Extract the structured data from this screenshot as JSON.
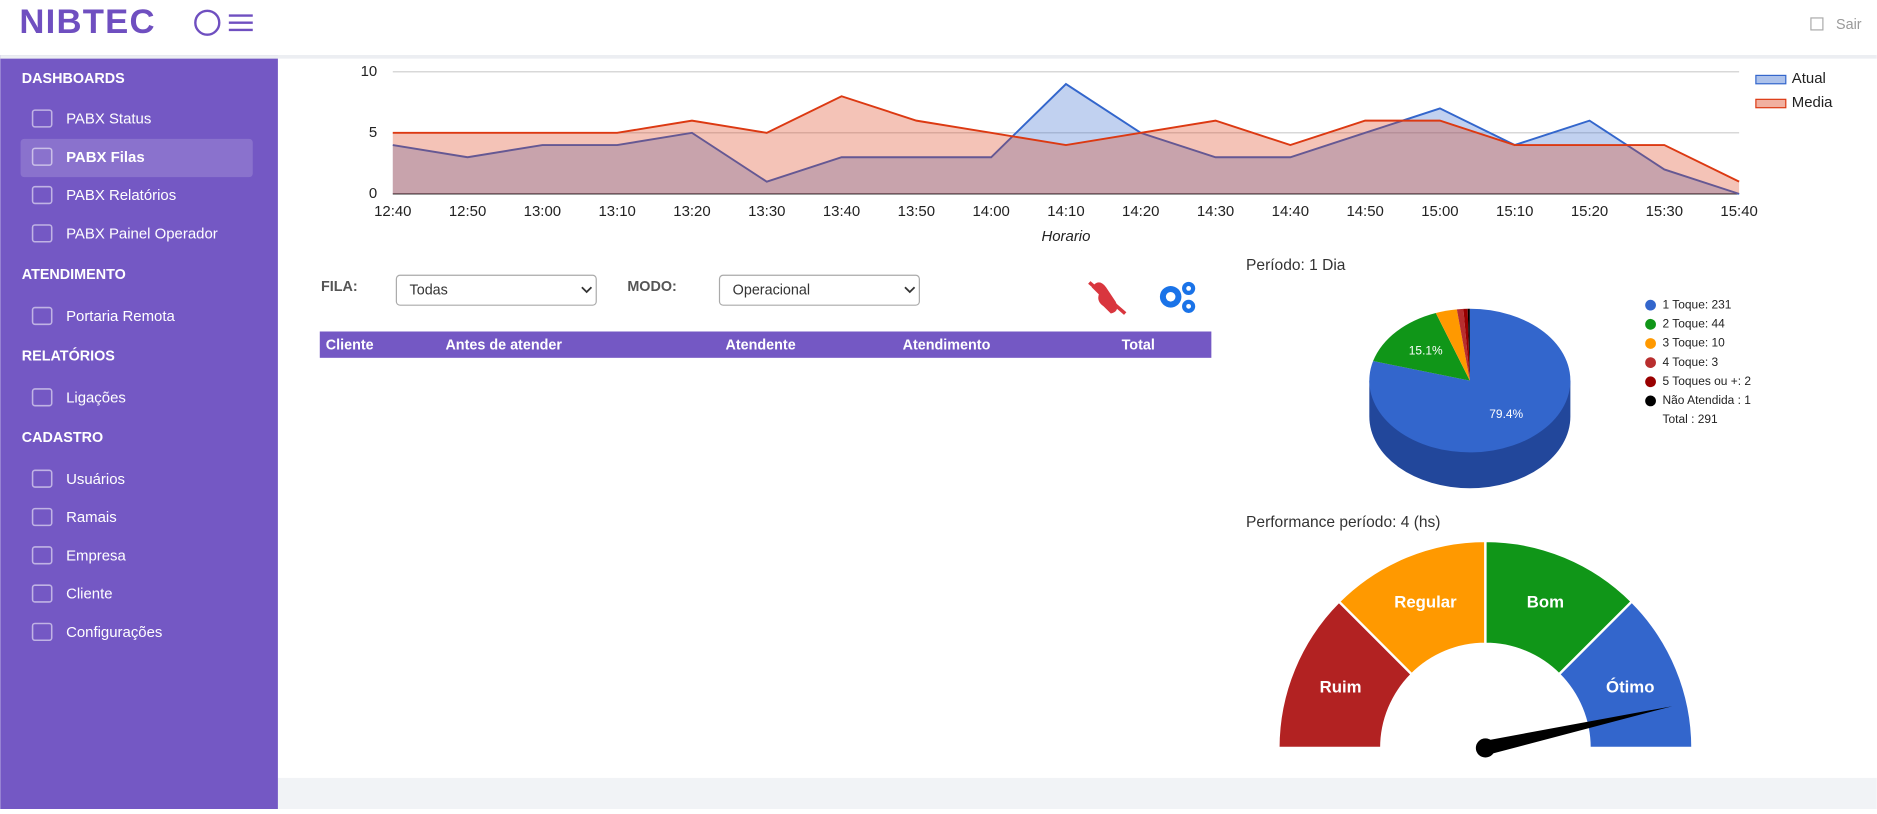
{
  "header": {
    "brand": "NIBTEC",
    "logout": "Sair"
  },
  "sidebar": {
    "sections": [
      {
        "title": "DASHBOARDS",
        "items": [
          "PABX Status",
          "PABX Filas",
          "PABX Relatórios",
          "PABX Painel Operador"
        ]
      },
      {
        "title": "ATENDIMENTO",
        "items": [
          "Portaria Remota"
        ]
      },
      {
        "title": "RELATÓRIOS",
        "items": [
          "Ligações"
        ]
      },
      {
        "title": "CADASTRO",
        "items": [
          "Usuários",
          "Ramais",
          "Empresa",
          "Cliente",
          "Configurações"
        ]
      }
    ]
  },
  "filters": {
    "fila_label": "FILA:",
    "fila_value": "Todas",
    "modo_label": "MODO:",
    "modo_value": "Operacional"
  },
  "table": {
    "columns": [
      "Cliente",
      "Antes de atender",
      "Atendente",
      "Atendimento",
      "Total"
    ]
  },
  "chart_data": [
    {
      "type": "area",
      "x_label": "Horario",
      "categories": [
        "12:40",
        "12:50",
        "13:00",
        "13:10",
        "13:20",
        "13:30",
        "13:40",
        "13:50",
        "14:00",
        "14:10",
        "14:20",
        "14:30",
        "14:40",
        "14:50",
        "15:00",
        "15:10",
        "15:20",
        "15:30",
        "15:40"
      ],
      "series": [
        {
          "name": "Atual",
          "color": "#3366cc",
          "values": [
            4,
            3,
            4,
            4,
            5,
            1,
            3,
            3,
            3,
            9,
            5,
            3,
            3,
            5,
            7,
            4,
            6,
            2,
            0
          ]
        },
        {
          "name": "Media",
          "color": "#dc3912",
          "values": [
            5,
            5,
            5,
            5,
            6,
            5,
            8,
            6,
            5,
            4,
            5,
            6,
            4,
            6,
            6,
            4,
            4,
            4,
            1
          ]
        }
      ],
      "ylim": [
        0,
        10
      ],
      "yticks": [
        0,
        5,
        10
      ],
      "grid": true,
      "legend": "right"
    },
    {
      "type": "pie",
      "title": "Período: 1 Dia",
      "labels": [
        "1 Toque: 231",
        "2 Toque: 44",
        "3 Toque: 10",
        "4 Toque: 3",
        "5 Toques ou +: 2",
        "Não Atendida : 1"
      ],
      "values": [
        231,
        44,
        10,
        3,
        2,
        1
      ],
      "value_labels": [
        "79.4%",
        "15.1%",
        null,
        null,
        null,
        null
      ],
      "colors": [
        "#3366cc",
        "#109618",
        "#ff9900",
        "#b82e2e",
        "#990000",
        "#000000"
      ],
      "total_label": "Total : 291"
    },
    {
      "type": "gauge",
      "title": "Performance período: 4 (hs)",
      "min": 0,
      "max": 100,
      "value": 93,
      "bands": [
        {
          "label": "Ruim",
          "color": "#b22222",
          "from": 0,
          "to": 25
        },
        {
          "label": "Regular",
          "color": "#ff9900",
          "from": 25,
          "to": 50
        },
        {
          "label": "Bom",
          "color": "#109618",
          "from": 50,
          "to": 75
        },
        {
          "label": "Ótimo",
          "color": "#3366cc",
          "from": 75,
          "to": 100
        }
      ]
    }
  ]
}
